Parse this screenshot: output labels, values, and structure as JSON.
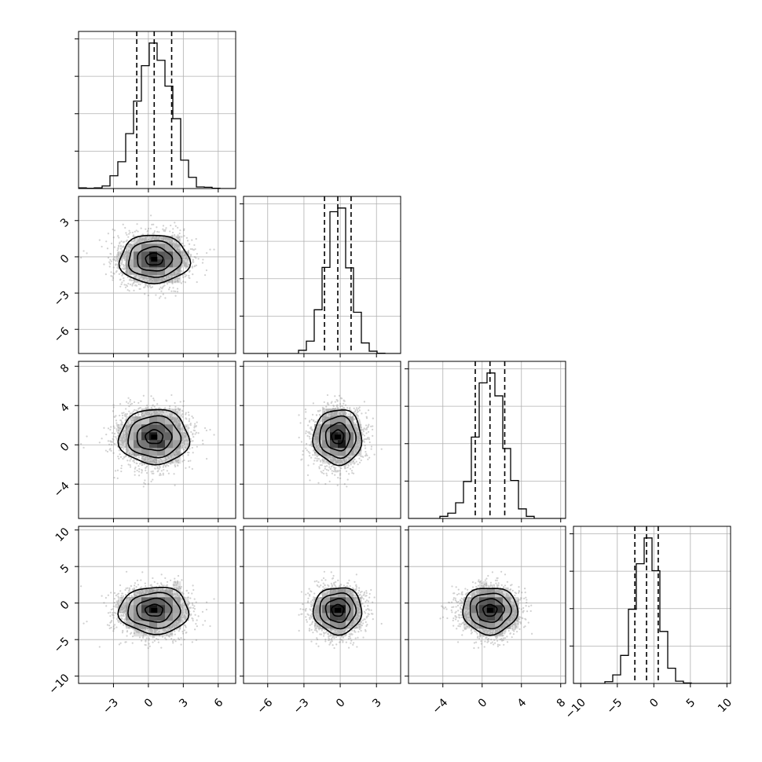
{
  "chart_data": {
    "type": "corner",
    "grid": true,
    "parameters": [
      {
        "key": "p1",
        "range": [
          -6,
          7.5
        ],
        "ticks": [
          -3,
          0,
          3,
          6
        ],
        "tick_labels": [
          "−3",
          "0",
          "3",
          "6"
        ],
        "mean": 0.5,
        "sd": 1.5,
        "quantiles": [
          -1.0,
          0.5,
          2.0
        ]
      },
      {
        "key": "p2",
        "range": [
          -8,
          5
        ],
        "ticks": [
          -6,
          -3,
          0,
          3
        ],
        "tick_labels": [
          "−6",
          "−3",
          "0",
          "3"
        ],
        "mean": -0.2,
        "sd": 1.0,
        "quantiles": [
          -1.3,
          -0.2,
          0.9
        ]
      },
      {
        "key": "p3",
        "range": [
          -7.5,
          8.5
        ],
        "ticks": [
          -4,
          0,
          4,
          8
        ],
        "tick_labels": [
          "−4",
          "0",
          "4",
          "8"
        ],
        "mean": 0.8,
        "sd": 1.4,
        "quantiles": [
          -0.7,
          0.8,
          2.3
        ]
      },
      {
        "key": "p4",
        "range": [
          -11,
          10.5
        ],
        "ticks": [
          -10,
          -5,
          0,
          5,
          10
        ],
        "tick_labels": [
          "−10",
          "−5",
          "0",
          "5",
          "10"
        ],
        "mean": -1.0,
        "sd": 1.6,
        "quantiles": [
          -2.6,
          -1.0,
          0.6
        ]
      }
    ],
    "histogram_bins": 20,
    "contour_levels_sigma": [
      0.5,
      1.0,
      1.5,
      2.0
    ],
    "samples_shown": 2500
  }
}
